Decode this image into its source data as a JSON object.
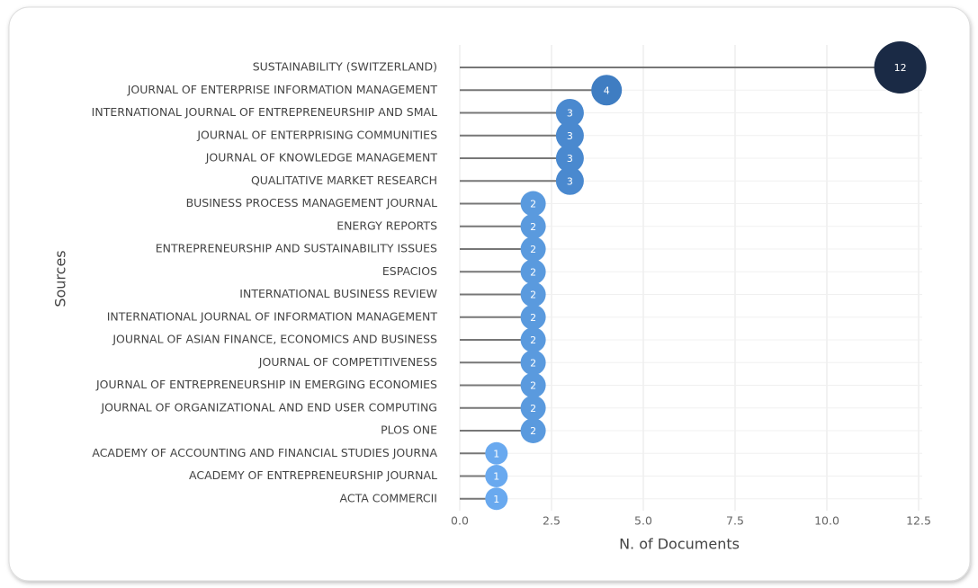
{
  "chart_data": {
    "type": "lollipop",
    "x_label": "N. of Documents",
    "y_label": "Sources",
    "categories": [
      "SUSTAINABILITY (SWITZERLAND)",
      "JOURNAL OF ENTERPRISE INFORMATION MANAGEMENT",
      "INTERNATIONAL JOURNAL OF ENTREPRENEURSHIP AND SMAL",
      "JOURNAL OF ENTERPRISING COMMUNITIES",
      "JOURNAL OF KNOWLEDGE MANAGEMENT",
      "QUALITATIVE MARKET RESEARCH",
      "BUSINESS PROCESS MANAGEMENT JOURNAL",
      "ENERGY REPORTS",
      "ENTREPRENEURSHIP AND SUSTAINABILITY ISSUES",
      "ESPACIOS",
      "INTERNATIONAL BUSINESS REVIEW",
      "INTERNATIONAL JOURNAL OF INFORMATION MANAGEMENT",
      "JOURNAL OF ASIAN FINANCE, ECONOMICS AND BUSINESS",
      "JOURNAL OF COMPETITIVENESS",
      "JOURNAL OF ENTREPRENEURSHIP IN EMERGING ECONOMIES",
      "JOURNAL OF ORGANIZATIONAL AND END USER COMPUTING",
      "PLOS ONE",
      "ACADEMY OF ACCOUNTING AND FINANCIAL STUDIES JOURNA",
      "ACADEMY OF ENTREPRENEURSHIP JOURNAL",
      "ACTA COMMERCII"
    ],
    "values": [
      12,
      4,
      3,
      3,
      3,
      3,
      2,
      2,
      2,
      2,
      2,
      2,
      2,
      2,
      2,
      2,
      2,
      1,
      1,
      1
    ],
    "colors": [
      "#1a2a45",
      "#3f7dc2",
      "#4a89cf",
      "#4a89cf",
      "#4a89cf",
      "#4a89cf",
      "#5a9ade",
      "#5a9ade",
      "#5a9ade",
      "#5a9ade",
      "#5a9ade",
      "#5a9ade",
      "#5a9ade",
      "#5a9ade",
      "#5a9ade",
      "#5a9ade",
      "#5a9ade",
      "#69a9ef",
      "#69a9ef",
      "#69a9ef"
    ],
    "xlim": [
      0,
      12.5
    ],
    "xticks": [
      {
        "value": 0,
        "label": "0.0"
      },
      2.5,
      {
        "value": 5,
        "label": "5.0"
      },
      7.5,
      {
        "value": 10,
        "label": "10.0"
      },
      12.5
    ],
    "grid": true
  }
}
